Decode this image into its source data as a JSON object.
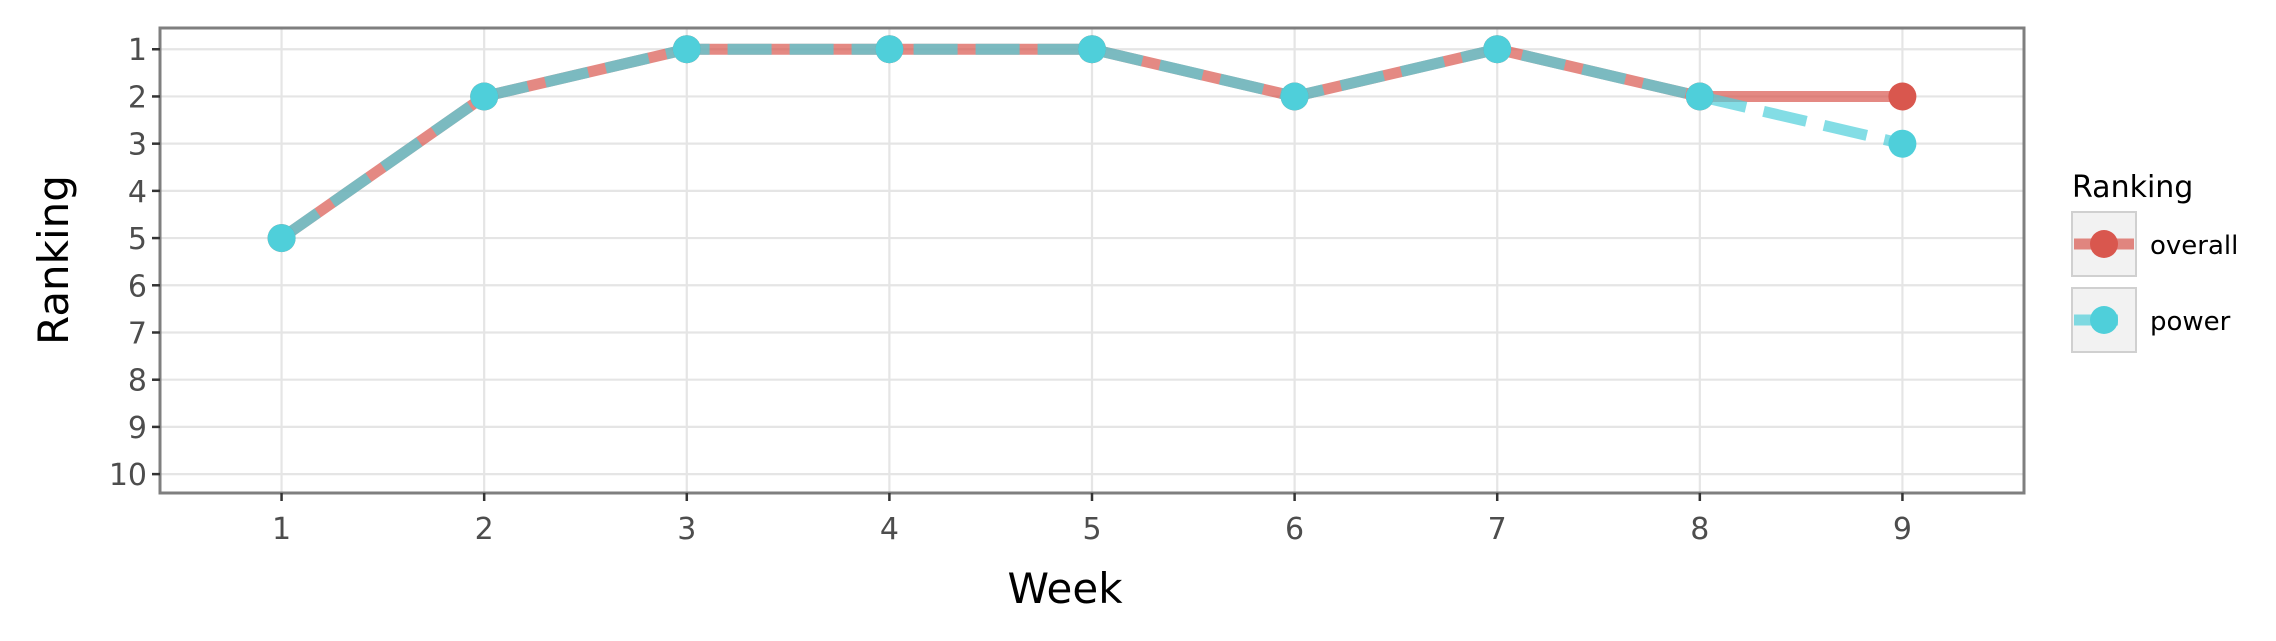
{
  "chart_data": {
    "type": "line",
    "title": "",
    "xlabel": "Week",
    "ylabel": "Ranking",
    "x": [
      1,
      2,
      3,
      4,
      5,
      6,
      7,
      8,
      9
    ],
    "xlim": [
      0.4,
      9.6
    ],
    "ylim": [
      10.4,
      0.55
    ],
    "y_inverted": true,
    "xticks": [
      "1",
      "2",
      "3",
      "4",
      "5",
      "6",
      "7",
      "8",
      "9"
    ],
    "yticks": [
      "1",
      "2",
      "3",
      "4",
      "5",
      "6",
      "7",
      "8",
      "9",
      "10"
    ],
    "grid": true,
    "legend": {
      "title": "Ranking",
      "placement": "right"
    },
    "series": [
      {
        "name": "overall",
        "values": [
          5,
          2,
          1,
          1,
          1,
          2,
          1,
          2,
          2
        ],
        "color": "#D9574E",
        "dash": "solid"
      },
      {
        "name": "power",
        "values": [
          5,
          2,
          1,
          1,
          1,
          2,
          1,
          2,
          3
        ],
        "color": "#4FCFDA",
        "dash": "dashed"
      }
    ]
  }
}
